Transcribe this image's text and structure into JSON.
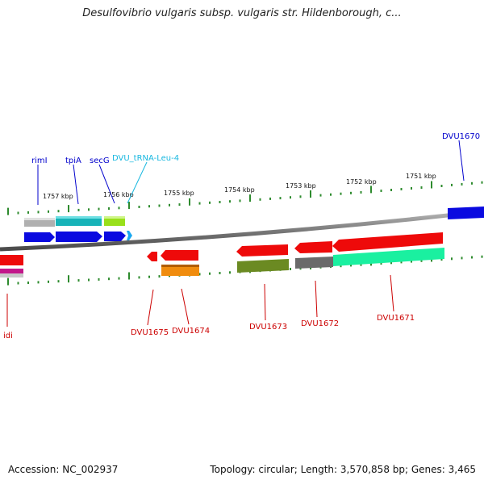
{
  "title": "Desulfovibrio vulgaris subsp. vulgaris str. Hildenborough, c...",
  "footer": {
    "accession": "Accession: NC_002937",
    "topology": "Topology: circular; Length: 3,570,858 bp; Genes: 3,465"
  },
  "colors": {
    "backbone": "#808080",
    "tick": "#2e8b2e",
    "forward_label": "#0000cc",
    "reverse_label": "#cc0000",
    "trna_label": "#19b8e0"
  },
  "scale_labels": [
    "1757 kbp",
    "1756 kbp",
    "1755 kbp",
    "1754 kbp",
    "1753 kbp",
    "1752 kbp",
    "1751 kbp"
  ],
  "forward_labels": [
    "rimI",
    "tpiA",
    "secG",
    "DVU_tRNA-Leu-4",
    "DVU1670"
  ],
  "reverse_labels": [
    "idi",
    "DVU1675",
    "DVU1674",
    "DVU1673",
    "DVU1672",
    "DVU1671"
  ]
}
